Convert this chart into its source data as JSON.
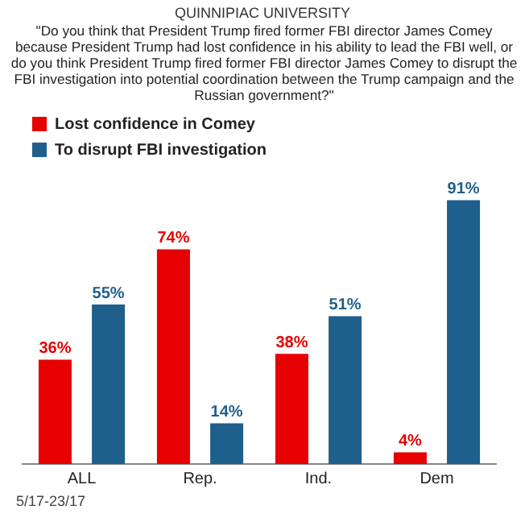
{
  "chart_data": {
    "type": "bar",
    "title": "QUINNIPIAC UNIVERSITY",
    "subtitle": "\"Do you think that President Trump fired former FBI director James Comey because President Trump had lost confidence in his ability to lead the FBI well, or do you think President Trump fired former FBI director James Comey to disrupt the FBI investigation into potential coordination between the Trump campaign and the Russian government?\"",
    "categories": [
      "ALL",
      "Rep.",
      "Ind.",
      "Dem"
    ],
    "series": [
      {
        "name": "Lost confidence in Comey",
        "color": "#e60000",
        "values": [
          36,
          74,
          38,
          4
        ],
        "value_labels": [
          "36%",
          "74%",
          "38%",
          "4%"
        ]
      },
      {
        "name": "To disrupt FBI investigation",
        "color": "#1f5f8c",
        "values": [
          55,
          14,
          51,
          91
        ],
        "value_labels": [
          "55%",
          "14%",
          "51%",
          "91%"
        ]
      }
    ],
    "legend": "top left",
    "grid": false,
    "tick_labels": "x",
    "annotations": [
      "5/17-23/17"
    ]
  }
}
